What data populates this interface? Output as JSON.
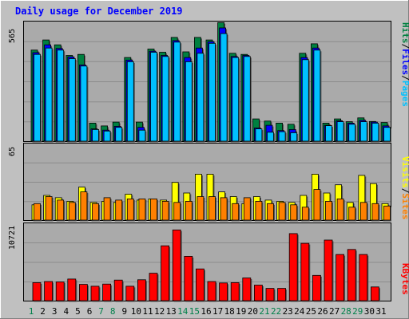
{
  "chart_data": [
    {
      "type": "bar",
      "title": "Daily usage for December 2019",
      "categories": [
        "1",
        "2",
        "3",
        "4",
        "5",
        "6",
        "7",
        "8",
        "9",
        "10",
        "11",
        "12",
        "13",
        "14",
        "15",
        "16",
        "17",
        "18",
        "19",
        "20",
        "21",
        "22",
        "23",
        "24",
        "25",
        "26",
        "27",
        "28",
        "29",
        "30",
        "31"
      ],
      "weekend_days": [
        "1",
        "7",
        "8",
        "14",
        "15",
        "21",
        "22",
        "28",
        "29"
      ],
      "ymax_label": "565",
      "ylim": [
        0,
        565
      ],
      "legend": [
        "Pages",
        "Files",
        "Hits"
      ],
      "series": [
        {
          "name": "Hits",
          "color": "#008040",
          "values": [
            430,
            478,
            455,
            405,
            410,
            85,
            72,
            90,
            395,
            90,
            435,
            420,
            490,
            422,
            490,
            478,
            560,
            415,
            410,
            105,
            95,
            85,
            80,
            415,
            460,
            85,
            105,
            92,
            110,
            93,
            88
          ]
        },
        {
          "name": "Files",
          "color": "#0000ff",
          "values": [
            418,
            455,
            438,
            398,
            360,
            58,
            52,
            70,
            383,
            65,
            425,
            405,
            475,
            395,
            440,
            470,
            535,
            400,
            405,
            62,
            75,
            50,
            55,
            395,
            440,
            75,
            96,
            85,
            98,
            90,
            72
          ]
        },
        {
          "name": "Pages",
          "color": "#00c0ff",
          "values": [
            410,
            440,
            430,
            390,
            355,
            55,
            48,
            65,
            375,
            52,
            420,
            400,
            468,
            375,
            415,
            462,
            508,
            395,
            400,
            58,
            42,
            45,
            40,
            385,
            430,
            73,
            92,
            80,
            92,
            85,
            65
          ]
        }
      ]
    },
    {
      "type": "bar",
      "ymax_label": "65",
      "ylim": [
        0,
        65
      ],
      "legend": [
        "Sites",
        "Visits"
      ],
      "series": [
        {
          "name": "Visits",
          "color": "#ffff00",
          "values": [
            13,
            21,
            19,
            16,
            28,
            15,
            16,
            15,
            22,
            17,
            18,
            17,
            32,
            23,
            39,
            39,
            24,
            20,
            14,
            20,
            17,
            16,
            15,
            21,
            39,
            23,
            30,
            15,
            38,
            31,
            14
          ]
        },
        {
          "name": "Sites",
          "color": "#ff8000",
          "values": [
            14,
            20,
            17,
            15,
            24,
            14,
            19,
            17,
            18,
            18,
            18,
            16,
            15,
            16,
            20,
            20,
            19,
            14,
            19,
            16,
            14,
            15,
            13,
            11,
            26,
            16,
            18,
            11,
            15,
            14,
            12
          ]
        }
      ]
    },
    {
      "type": "bar",
      "ymax_label": "10721",
      "ylim": [
        0,
        10721
      ],
      "legend": [
        "KBytes"
      ],
      "series": [
        {
          "name": "KBytes",
          "color": "#ff0000",
          "values": [
            2500,
            2650,
            2600,
            3000,
            2250,
            2000,
            2300,
            2850,
            2000,
            2900,
            3800,
            7600,
            9800,
            6150,
            4400,
            2650,
            2450,
            2500,
            3150,
            2150,
            1700,
            1700,
            9300,
            7950,
            3500,
            8400,
            6400,
            7100,
            6400,
            1900,
            0
          ]
        }
      ]
    }
  ]
}
